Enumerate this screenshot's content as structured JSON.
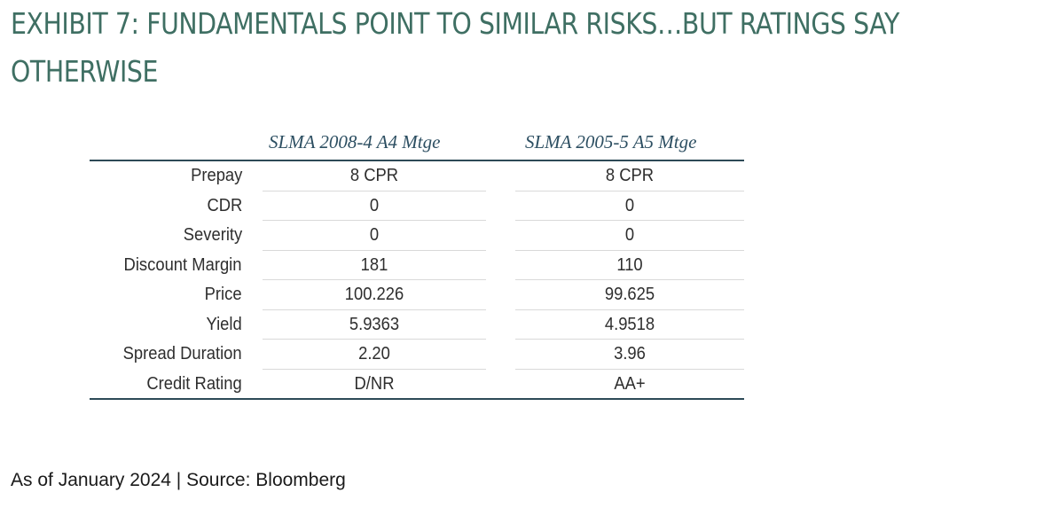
{
  "title": "EXHIBIT 7: FUNDAMENTALS POINT TO SIMILAR RISKS…BUT RATINGS SAY OTHERWISE",
  "table": {
    "columns": [
      "SLMA 2008-4 A4 Mtge",
      "SLMA 2005-5 A5 Mtge"
    ],
    "rows": [
      {
        "label": "Prepay",
        "v1": "8 CPR",
        "v2": "8 CPR"
      },
      {
        "label": "CDR",
        "v1": "0",
        "v2": "0"
      },
      {
        "label": "Severity",
        "v1": "0",
        "v2": "0"
      },
      {
        "label": "Discount Margin",
        "v1": "181",
        "v2": "110"
      },
      {
        "label": "Price",
        "v1": "100.226",
        "v2": "99.625"
      },
      {
        "label": "Yield",
        "v1": "5.9363",
        "v2": "4.9518"
      },
      {
        "label": "Spread Duration",
        "v1": "2.20",
        "v2": "3.96"
      },
      {
        "label": "Credit Rating",
        "v1": "D/NR",
        "v2": "AA+"
      }
    ]
  },
  "footnote": "As of January 2024 | Source: Bloomberg",
  "colors": {
    "title": "#3f6f63",
    "header_text": "#2d4f62",
    "rule": "#2d4a57"
  }
}
